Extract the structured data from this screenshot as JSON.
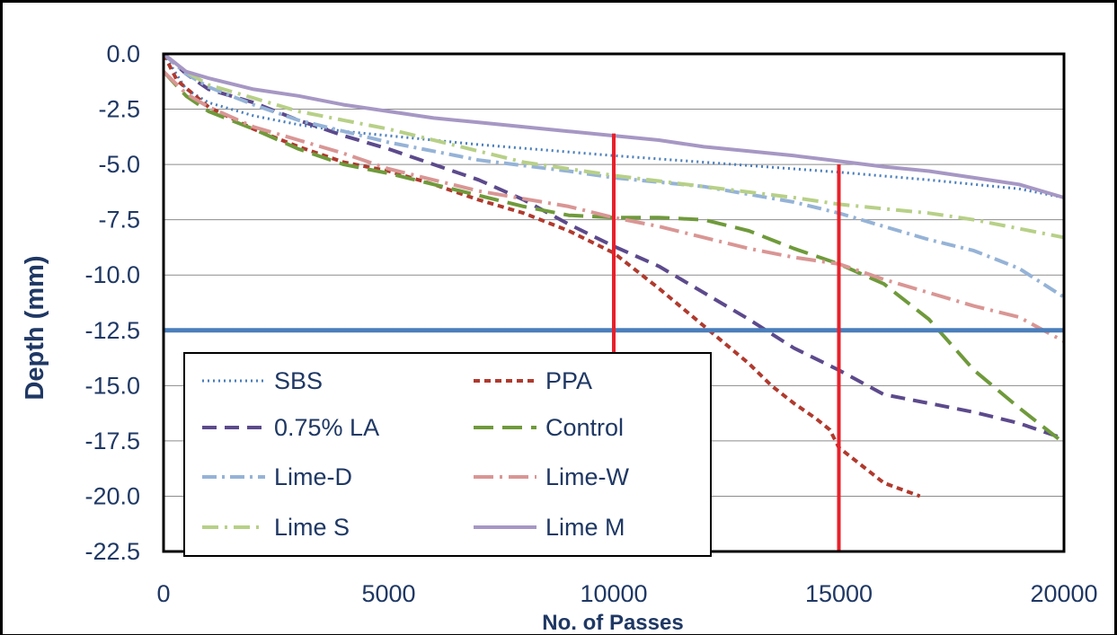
{
  "chart_data": {
    "type": "line",
    "title": "",
    "xlabel": "No. of Passes",
    "ylabel": "Depth (mm)",
    "xlim": [
      0,
      20000
    ],
    "ylim": [
      -22.5,
      0
    ],
    "x_ticks": [
      "0",
      "5000",
      "10000",
      "15000",
      "20000"
    ],
    "y_ticks": [
      "0.0",
      "-2.5",
      "-5.0",
      "-7.5",
      "-10.0",
      "-12.5",
      "-15.0",
      "-17.5",
      "-20.0",
      "-22.5"
    ],
    "grid": "horizontal",
    "legend_position": "bottom-left",
    "threshold_line": {
      "y": -12.5,
      "color": "#4a7ebb"
    },
    "marker_lines": [
      {
        "x": 10000,
        "y_top": -3.6,
        "y_bottom": -13.5,
        "color": "#e8202a"
      },
      {
        "x": 15000,
        "y_top": -5.0,
        "y_bottom": -22.5,
        "color": "#e8202a"
      }
    ],
    "series": [
      {
        "name": "SBS",
        "color": "#4a7ebb",
        "dash": "2 4",
        "width": 3,
        "points": [
          [
            0,
            0
          ],
          [
            500,
            -1.6
          ],
          [
            1000,
            -2.2
          ],
          [
            2000,
            -2.8
          ],
          [
            3000,
            -3.2
          ],
          [
            4000,
            -3.5
          ],
          [
            5000,
            -3.7
          ],
          [
            7000,
            -4.1
          ],
          [
            10000,
            -4.6
          ],
          [
            12000,
            -4.9
          ],
          [
            15000,
            -5.35
          ],
          [
            17000,
            -5.7
          ],
          [
            19000,
            -6.1
          ],
          [
            20000,
            -6.5
          ]
        ]
      },
      {
        "name": "PPA",
        "color": "#b03a2e",
        "dash": "7 5",
        "width": 4,
        "points": [
          [
            0,
            0
          ],
          [
            300,
            -1.2
          ],
          [
            1000,
            -2.4
          ],
          [
            2000,
            -3.4
          ],
          [
            3000,
            -4.2
          ],
          [
            4000,
            -4.9
          ],
          [
            5000,
            -5.3
          ],
          [
            6000,
            -5.9
          ],
          [
            7000,
            -6.6
          ],
          [
            8000,
            -7.2
          ],
          [
            9000,
            -8.0
          ],
          [
            10000,
            -9.0
          ],
          [
            11000,
            -10.6
          ],
          [
            12000,
            -12.3
          ],
          [
            13000,
            -14.0
          ],
          [
            13500,
            -15.0
          ],
          [
            14000,
            -15.8
          ],
          [
            14500,
            -16.5
          ],
          [
            14800,
            -17.0
          ],
          [
            15000,
            -17.8
          ],
          [
            15500,
            -18.6
          ],
          [
            16000,
            -19.4
          ],
          [
            16800,
            -20.0
          ]
        ]
      },
      {
        "name": "0.75% LA",
        "color": "#5c4a8c",
        "dash": "16 9",
        "width": 4,
        "points": [
          [
            0,
            0
          ],
          [
            500,
            -0.9
          ],
          [
            1000,
            -1.6
          ],
          [
            2000,
            -2.2
          ],
          [
            3000,
            -3.0
          ],
          [
            4000,
            -3.7
          ],
          [
            5000,
            -4.3
          ],
          [
            6000,
            -5.0
          ],
          [
            7000,
            -5.7
          ],
          [
            8000,
            -6.6
          ],
          [
            9000,
            -7.7
          ],
          [
            10000,
            -8.7
          ],
          [
            11000,
            -9.6
          ],
          [
            12000,
            -10.8
          ],
          [
            13000,
            -12.0
          ],
          [
            14000,
            -13.3
          ],
          [
            15000,
            -14.3
          ],
          [
            16000,
            -15.4
          ],
          [
            17000,
            -15.8
          ],
          [
            18000,
            -16.2
          ],
          [
            19000,
            -16.7
          ],
          [
            20000,
            -17.4
          ]
        ]
      },
      {
        "name": "Control",
        "color": "#6f9a3b",
        "dash": "22 10",
        "width": 4,
        "points": [
          [
            0,
            -0.8
          ],
          [
            500,
            -1.9
          ],
          [
            1000,
            -2.6
          ],
          [
            2000,
            -3.4
          ],
          [
            3000,
            -4.3
          ],
          [
            4000,
            -5.0
          ],
          [
            5000,
            -5.4
          ],
          [
            6000,
            -5.9
          ],
          [
            7000,
            -6.4
          ],
          [
            8000,
            -6.9
          ],
          [
            9000,
            -7.3
          ],
          [
            10000,
            -7.4
          ],
          [
            11000,
            -7.4
          ],
          [
            12000,
            -7.5
          ],
          [
            13000,
            -8.0
          ],
          [
            14000,
            -8.8
          ],
          [
            15000,
            -9.5
          ],
          [
            16000,
            -10.4
          ],
          [
            17000,
            -12.0
          ],
          [
            18000,
            -14.3
          ],
          [
            19000,
            -16.0
          ],
          [
            20000,
            -17.6
          ]
        ]
      },
      {
        "name": "Lime-D",
        "color": "#95b3d7",
        "dash": "16 6 3 6",
        "width": 4,
        "points": [
          [
            0,
            0
          ],
          [
            500,
            -0.9
          ],
          [
            1000,
            -1.5
          ],
          [
            2000,
            -2.3
          ],
          [
            3000,
            -3.0
          ],
          [
            5000,
            -4.0
          ],
          [
            7000,
            -4.8
          ],
          [
            9000,
            -5.3
          ],
          [
            10000,
            -5.6
          ],
          [
            12000,
            -6.0
          ],
          [
            14000,
            -6.7
          ],
          [
            15000,
            -7.2
          ],
          [
            16000,
            -7.8
          ],
          [
            17000,
            -8.4
          ],
          [
            18000,
            -8.9
          ],
          [
            19000,
            -9.7
          ],
          [
            20000,
            -11.0
          ]
        ]
      },
      {
        "name": "Lime-W",
        "color": "#d99694",
        "dash": "22 7 3 7",
        "width": 4,
        "points": [
          [
            0,
            -0.8
          ],
          [
            500,
            -1.8
          ],
          [
            1000,
            -2.4
          ],
          [
            2000,
            -3.3
          ],
          [
            3000,
            -3.9
          ],
          [
            4000,
            -4.5
          ],
          [
            5000,
            -5.2
          ],
          [
            7000,
            -6.2
          ],
          [
            9000,
            -6.9
          ],
          [
            10000,
            -7.4
          ],
          [
            11000,
            -7.8
          ],
          [
            12000,
            -8.3
          ],
          [
            13000,
            -8.8
          ],
          [
            14000,
            -9.2
          ],
          [
            15000,
            -9.5
          ],
          [
            16000,
            -10.2
          ],
          [
            17000,
            -10.8
          ],
          [
            18000,
            -11.4
          ],
          [
            19000,
            -11.9
          ],
          [
            20000,
            -13.0
          ]
        ]
      },
      {
        "name": "Lime S",
        "color": "#b7d087",
        "dash": "18 7 3 7",
        "width": 4,
        "points": [
          [
            0,
            0
          ],
          [
            500,
            -0.8
          ],
          [
            1000,
            -1.4
          ],
          [
            2000,
            -2.0
          ],
          [
            3000,
            -2.6
          ],
          [
            4000,
            -3.0
          ],
          [
            5000,
            -3.4
          ],
          [
            6000,
            -3.9
          ],
          [
            7000,
            -4.4
          ],
          [
            8000,
            -4.9
          ],
          [
            9000,
            -5.2
          ],
          [
            10000,
            -5.5
          ],
          [
            12000,
            -6.0
          ],
          [
            14000,
            -6.5
          ],
          [
            15000,
            -6.8
          ],
          [
            16000,
            -7.0
          ],
          [
            17000,
            -7.2
          ],
          [
            18000,
            -7.5
          ],
          [
            19000,
            -7.9
          ],
          [
            20000,
            -8.3
          ]
        ]
      },
      {
        "name": "Lime M",
        "color": "#a697c4",
        "dash": "",
        "width": 4,
        "points": [
          [
            0,
            0
          ],
          [
            500,
            -0.8
          ],
          [
            1000,
            -1.1
          ],
          [
            2000,
            -1.6
          ],
          [
            3000,
            -1.9
          ],
          [
            4000,
            -2.3
          ],
          [
            5000,
            -2.6
          ],
          [
            6000,
            -2.9
          ],
          [
            7000,
            -3.1
          ],
          [
            8000,
            -3.3
          ],
          [
            9000,
            -3.5
          ],
          [
            10000,
            -3.7
          ],
          [
            11000,
            -3.9
          ],
          [
            12000,
            -4.2
          ],
          [
            13000,
            -4.4
          ],
          [
            14000,
            -4.6
          ],
          [
            15000,
            -4.85
          ],
          [
            16000,
            -5.1
          ],
          [
            17000,
            -5.3
          ],
          [
            18000,
            -5.6
          ],
          [
            19000,
            -5.9
          ],
          [
            20000,
            -6.5
          ]
        ]
      }
    ]
  }
}
